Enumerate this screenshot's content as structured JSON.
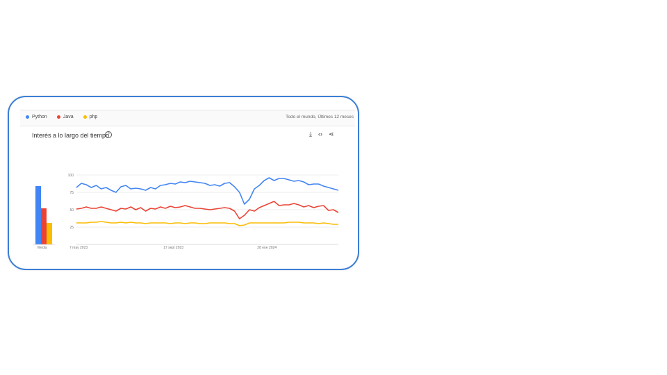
{
  "header": {
    "legend": [
      {
        "name": "Python",
        "color": "#4285f4"
      },
      {
        "name": "Java",
        "color": "#ea4335"
      },
      {
        "name": "php",
        "color": "#fbbc04"
      }
    ],
    "region": "Todo el mundo, Últimos 12 meses"
  },
  "card": {
    "title": "Interés a lo largo del tiempo",
    "help_icon": "question-circle-icon",
    "tools": [
      "download-icon",
      "embed-icon",
      "share-icon"
    ]
  },
  "chart_data": {
    "type": "line",
    "title": "Interés a lo largo del tiempo",
    "ylim": [
      0,
      100
    ],
    "y_ticks": [
      "100",
      "75",
      "50",
      "25"
    ],
    "x_ticks": [
      "7 may 2023",
      "17 sept 2023",
      "28 ene 2024"
    ],
    "x_tick_positions": [
      0,
      19,
      38
    ],
    "grid": true,
    "average_bars": {
      "label": "Media",
      "values": [
        {
          "name": "Python",
          "value": 84
        },
        {
          "name": "Java",
          "value": 52
        },
        {
          "name": "php",
          "value": 31
        }
      ]
    },
    "series": [
      {
        "name": "Python",
        "color": "#4285f4",
        "values": [
          82,
          88,
          86,
          82,
          85,
          80,
          82,
          78,
          75,
          83,
          85,
          80,
          81,
          80,
          78,
          82,
          80,
          85,
          86,
          88,
          87,
          90,
          89,
          91,
          90,
          89,
          88,
          85,
          86,
          84,
          88,
          89,
          83,
          75,
          58,
          65,
          80,
          85,
          92,
          96,
          92,
          95,
          95,
          93,
          91,
          92,
          90,
          86,
          87,
          87,
          84,
          82,
          80,
          78
        ]
      },
      {
        "name": "Java",
        "color": "#ea4335",
        "values": [
          51,
          52,
          54,
          52,
          52,
          54,
          52,
          50,
          48,
          52,
          51,
          54,
          50,
          53,
          48,
          52,
          51,
          54,
          52,
          55,
          53,
          54,
          56,
          54,
          52,
          52,
          51,
          50,
          51,
          52,
          53,
          52,
          48,
          37,
          42,
          50,
          48,
          53,
          56,
          59,
          62,
          56,
          57,
          57,
          59,
          57,
          54,
          56,
          53,
          55,
          56,
          49,
          50,
          46
        ]
      },
      {
        "name": "php",
        "color": "#fbbc04",
        "values": [
          31,
          31,
          31,
          32,
          32,
          33,
          32,
          31,
          31,
          32,
          31,
          32,
          31,
          31,
          30,
          31,
          31,
          31,
          31,
          30,
          31,
          31,
          30,
          31,
          31,
          30,
          30,
          31,
          31,
          31,
          31,
          30,
          30,
          27,
          28,
          31,
          31,
          31,
          31,
          31,
          31,
          31,
          31,
          32,
          32,
          32,
          31,
          31,
          31,
          30,
          31,
          30,
          29,
          29
        ]
      }
    ]
  }
}
